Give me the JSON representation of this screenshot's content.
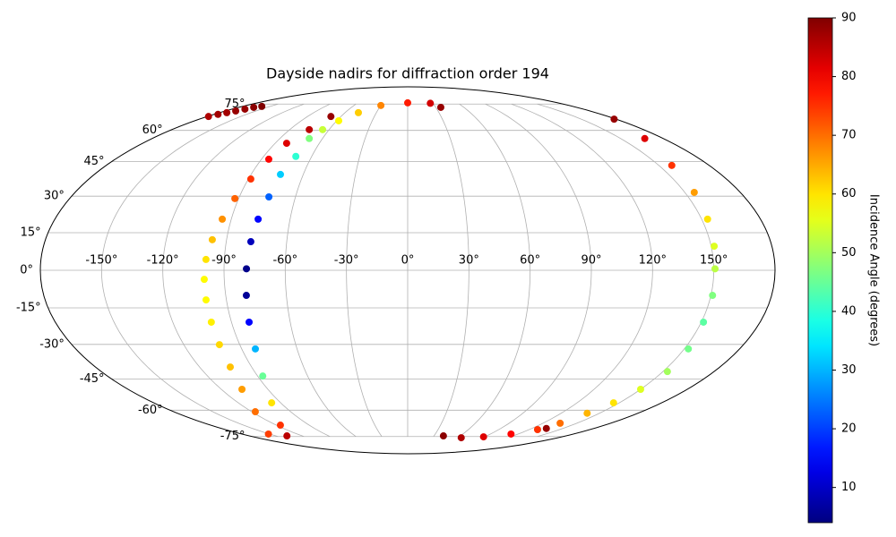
{
  "chart_data": {
    "type": "scatter",
    "projection": "mollweide",
    "title": "Dayside nadirs for diffraction order 194",
    "x": [
      -69,
      -75.1,
      -82.2,
      -85.5,
      -88.6,
      -92.0,
      -94.6,
      -97.1,
      -99.0,
      -99.8,
      -100.1,
      -100.3,
      -100.9,
      -102.3,
      -106.7,
      -117.2,
      -151.2,
      -137.5,
      -116.3,
      -96.4,
      -86.9,
      -82.6,
      -81.0,
      -79.8,
      -79.0,
      -77.8,
      -76.3,
      -74.2,
      -73.1,
      -69.9,
      -69.3,
      -64.9,
      -58.3,
      -47.2,
      -29.9,
      0,
      26.8,
      35.3,
      -179,
      -176.3,
      -173.2,
      -169.9,
      -166.8,
      -164.1,
      -159.0,
      178.4,
      166.9,
      157.7,
      155.1,
      153.0,
      151.5,
      150.6,
      150.8,
      151.1,
      152.2,
      152.6,
      150.0,
      145.9,
      140.3,
      135.2,
      128.3,
      112.2,
      88.6,
      64.2,
      40.7,
      134
    ],
    "y": [
      67.5,
      60.4,
      53.6,
      46.1,
      37.3,
      29.0,
      20.5,
      12.2,
      4.3,
      -3.6,
      -11.8,
      -20.8,
      -30.1,
      -39.7,
      -49.8,
      -60.8,
      -73.4,
      -74.6,
      -68.1,
      -56.3,
      -43.7,
      -31.9,
      -20.8,
      -10.0,
      0.6,
      11.4,
      20.5,
      29.7,
      39.3,
      47.4,
      55.9,
      60.4,
      65.1,
      69.7,
      74.1,
      75.8,
      75.5,
      72.9,
      67.5,
      68.7,
      69.7,
      70.7,
      71.8,
      72.9,
      73.5,
      66.0,
      55.9,
      43.3,
      31.6,
      20.5,
      9.6,
      0.6,
      -10.0,
      -20.8,
      -31.9,
      -41.7,
      -49.8,
      -56.3,
      -61.6,
      -67.0,
      -70.7,
      -73.4,
      -75.2,
      -75.8,
      -74.6,
      -70.0
    ],
    "c": [
      88,
      85,
      82,
      79,
      75,
      71,
      67,
      63,
      60,
      58,
      58,
      59,
      61,
      63,
      66,
      70,
      74,
      85,
      75,
      60,
      45,
      30,
      15,
      6,
      5,
      9,
      15,
      23,
      32,
      40,
      47,
      53,
      58,
      62,
      68,
      77,
      83,
      88,
      86,
      87,
      87,
      88,
      88,
      89,
      90,
      88,
      82,
      75,
      66,
      60,
      55,
      52,
      47,
      44,
      46,
      50,
      55,
      60,
      64,
      70,
      75,
      79,
      82,
      86,
      89,
      88
    ],
    "colormap": "jet",
    "clim": [
      4,
      90
    ],
    "cticks": [
      10,
      20,
      30,
      40,
      50,
      60,
      70,
      80,
      90
    ],
    "colorbar_label": "Incidence Angle (degrees)",
    "xlim": [
      -180,
      180
    ],
    "ylim": [
      -90,
      90
    ],
    "xticks": [
      {
        "value": -150,
        "label": "-150°"
      },
      {
        "value": -120,
        "label": "-120°"
      },
      {
        "value": -90,
        "label": "-90°"
      },
      {
        "value": -60,
        "label": "-60°"
      },
      {
        "value": -30,
        "label": "-30°"
      },
      {
        "value": 0,
        "label": "0°"
      },
      {
        "value": 30,
        "label": "30°"
      },
      {
        "value": 60,
        "label": "60°"
      },
      {
        "value": 90,
        "label": "90°"
      },
      {
        "value": 120,
        "label": "120°"
      },
      {
        "value": 150,
        "label": "150°"
      }
    ],
    "yticks": [
      {
        "value": -75,
        "label": "-75°"
      },
      {
        "value": -60,
        "label": "-60°"
      },
      {
        "value": -45,
        "label": "-45°"
      },
      {
        "value": -30,
        "label": "-30°"
      },
      {
        "value": -15,
        "label": "-15°"
      },
      {
        "value": 0,
        "label": "0°"
      },
      {
        "value": 15,
        "label": "15°"
      },
      {
        "value": 30,
        "label": "30°"
      },
      {
        "value": 45,
        "label": "45°"
      },
      {
        "value": 60,
        "label": "60°"
      },
      {
        "value": 75,
        "label": "75°"
      }
    ],
    "grid": true
  }
}
